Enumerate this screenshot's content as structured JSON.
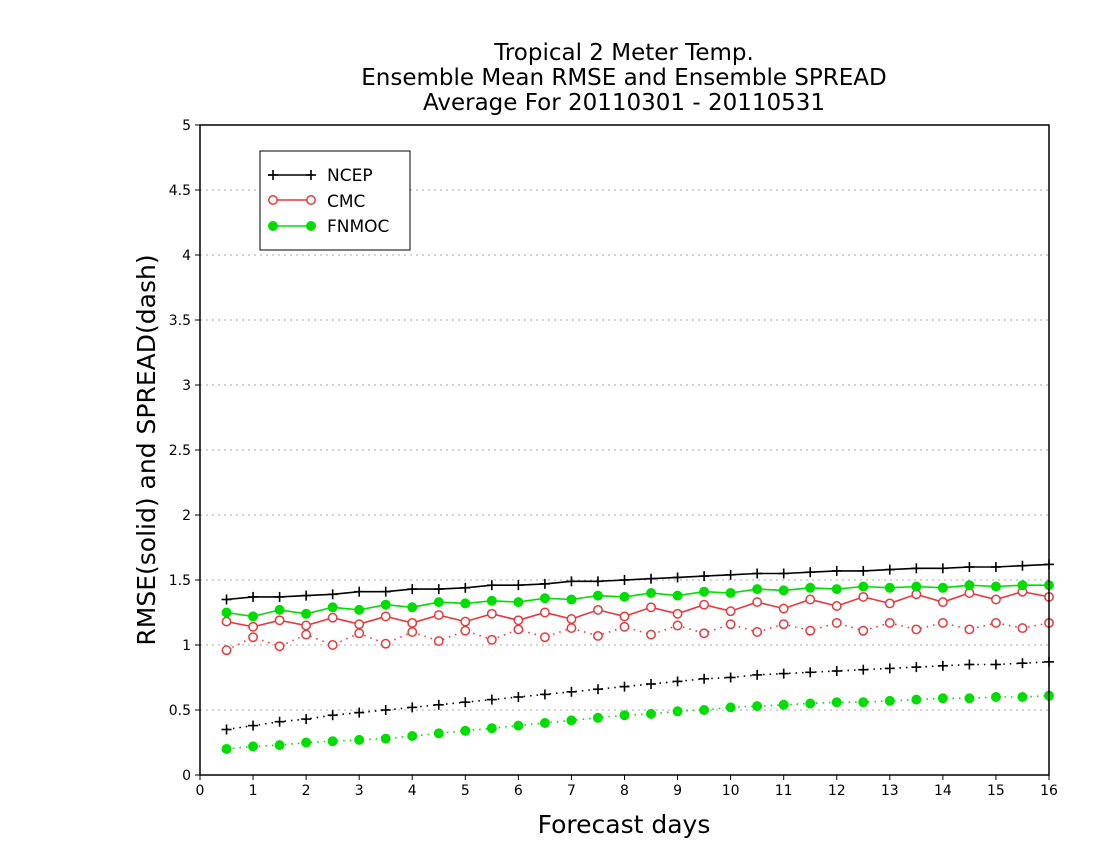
{
  "chart_data": {
    "type": "line",
    "title_lines": [
      "Tropical 2 Meter Temp.",
      "Ensemble Mean RMSE and Ensemble SPREAD",
      "Average For 20110301 - 20110531"
    ],
    "xlabel": "Forecast days",
    "ylabel": "RMSE(solid) and SPREAD(dash)",
    "xlim": [
      0,
      16
    ],
    "ylim": [
      0,
      5
    ],
    "x_ticks": [
      0,
      1,
      2,
      3,
      4,
      5,
      6,
      7,
      8,
      9,
      10,
      11,
      12,
      13,
      14,
      15,
      16
    ],
    "y_ticks": [
      0,
      0.5,
      1,
      1.5,
      2,
      2.5,
      3,
      3.5,
      4,
      4.5,
      5
    ],
    "y_tick_labels": [
      "0",
      "0.5",
      "1",
      "1.5",
      "2",
      "2.5",
      "3",
      "3.5",
      "4",
      "4.5",
      "5"
    ],
    "grid": "horizontal dotted",
    "legend_position": "top-left",
    "x": [
      0.5,
      1,
      1.5,
      2,
      2.5,
      3,
      3.5,
      4,
      4.5,
      5,
      5.5,
      6,
      6.5,
      7,
      7.5,
      8,
      8.5,
      9,
      9.5,
      10,
      10.5,
      11,
      11.5,
      12,
      12.5,
      13,
      13.5,
      14,
      14.5,
      15,
      15.5,
      16
    ],
    "series": [
      {
        "name": "NCEP",
        "color": "#000000",
        "marker": "plus",
        "rmse": [
          1.35,
          1.37,
          1.37,
          1.38,
          1.39,
          1.41,
          1.41,
          1.43,
          1.43,
          1.44,
          1.46,
          1.46,
          1.47,
          1.49,
          1.49,
          1.5,
          1.51,
          1.52,
          1.53,
          1.54,
          1.55,
          1.55,
          1.56,
          1.57,
          1.57,
          1.58,
          1.59,
          1.59,
          1.6,
          1.6,
          1.61,
          1.62
        ],
        "spread": [
          0.35,
          0.38,
          0.41,
          0.43,
          0.46,
          0.48,
          0.5,
          0.52,
          0.54,
          0.56,
          0.58,
          0.6,
          0.62,
          0.64,
          0.66,
          0.68,
          0.7,
          0.72,
          0.74,
          0.75,
          0.77,
          0.78,
          0.79,
          0.8,
          0.81,
          0.82,
          0.83,
          0.84,
          0.85,
          0.85,
          0.86,
          0.87
        ]
      },
      {
        "name": "CMC",
        "color": "#e8383b",
        "marker": "open-circle",
        "rmse": [
          1.18,
          1.14,
          1.19,
          1.15,
          1.21,
          1.16,
          1.22,
          1.17,
          1.23,
          1.18,
          1.24,
          1.19,
          1.25,
          1.2,
          1.27,
          1.22,
          1.29,
          1.24,
          1.31,
          1.26,
          1.33,
          1.28,
          1.35,
          1.3,
          1.37,
          1.32,
          1.39,
          1.33,
          1.4,
          1.35,
          1.41,
          1.37
        ],
        "spread": [
          0.96,
          1.06,
          0.99,
          1.08,
          1.0,
          1.09,
          1.01,
          1.1,
          1.03,
          1.11,
          1.04,
          1.12,
          1.06,
          1.13,
          1.07,
          1.14,
          1.08,
          1.15,
          1.09,
          1.16,
          1.1,
          1.16,
          1.11,
          1.17,
          1.11,
          1.17,
          1.12,
          1.17,
          1.12,
          1.17,
          1.13,
          1.17
        ]
      },
      {
        "name": "FNMOC",
        "color": "#00dd00",
        "marker": "filled-circle",
        "rmse": [
          1.25,
          1.22,
          1.27,
          1.24,
          1.29,
          1.27,
          1.31,
          1.29,
          1.33,
          1.32,
          1.34,
          1.33,
          1.36,
          1.35,
          1.38,
          1.37,
          1.4,
          1.38,
          1.41,
          1.4,
          1.43,
          1.42,
          1.44,
          1.43,
          1.45,
          1.44,
          1.45,
          1.44,
          1.46,
          1.45,
          1.46,
          1.46
        ],
        "spread": [
          0.2,
          0.22,
          0.23,
          0.25,
          0.26,
          0.27,
          0.28,
          0.3,
          0.32,
          0.34,
          0.36,
          0.38,
          0.4,
          0.42,
          0.44,
          0.46,
          0.47,
          0.49,
          0.5,
          0.52,
          0.53,
          0.54,
          0.55,
          0.56,
          0.56,
          0.57,
          0.58,
          0.59,
          0.59,
          0.6,
          0.6,
          0.61
        ]
      }
    ]
  }
}
